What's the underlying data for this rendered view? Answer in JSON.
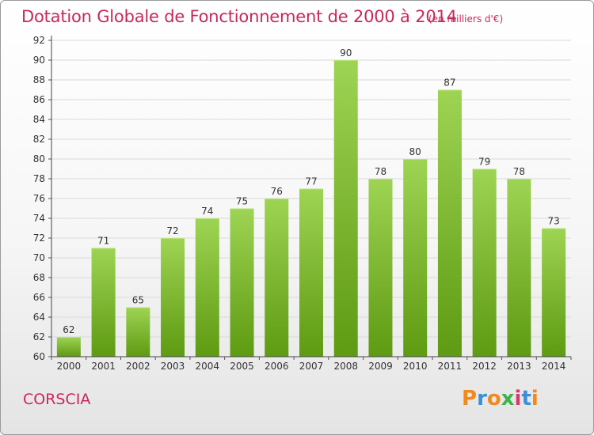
{
  "header": {
    "title": "Dotation Globale de Fonctionnement de 2000 à 2014",
    "subtitle": "(en milliers d'€)"
  },
  "footer": {
    "commune": "CORSCIA",
    "brand": "Proxiti",
    "brand_colors": [
      "#f08a1c",
      "#3b8fd6",
      "#f08a1c",
      "#3bb34a",
      "#d93a6e",
      "#3b8fd6",
      "#f08a1c"
    ]
  },
  "colors": {
    "title": "#c8285c",
    "bar_top": "#9ed453",
    "bar_bottom": "#5e9a12",
    "grid": "#d9d9d9",
    "axis_text": "#333333"
  },
  "chart_data": {
    "type": "bar",
    "title": "Dotation Globale de Fonctionnement de 2000 à 2014",
    "subtitle": "(en milliers d'€)",
    "xlabel": "",
    "ylabel": "",
    "categories": [
      "2000",
      "2001",
      "2002",
      "2003",
      "2004",
      "2005",
      "2006",
      "2007",
      "2008",
      "2009",
      "2010",
      "2011",
      "2012",
      "2013",
      "2014"
    ],
    "values": [
      62,
      71,
      65,
      72,
      74,
      75,
      76,
      77,
      90,
      78,
      80,
      87,
      79,
      78,
      73
    ],
    "ylim": [
      60,
      92
    ],
    "yticks": [
      60,
      62,
      64,
      66,
      68,
      70,
      72,
      74,
      76,
      78,
      80,
      82,
      84,
      86,
      88,
      90,
      92
    ],
    "grid": true,
    "legend": "none"
  }
}
